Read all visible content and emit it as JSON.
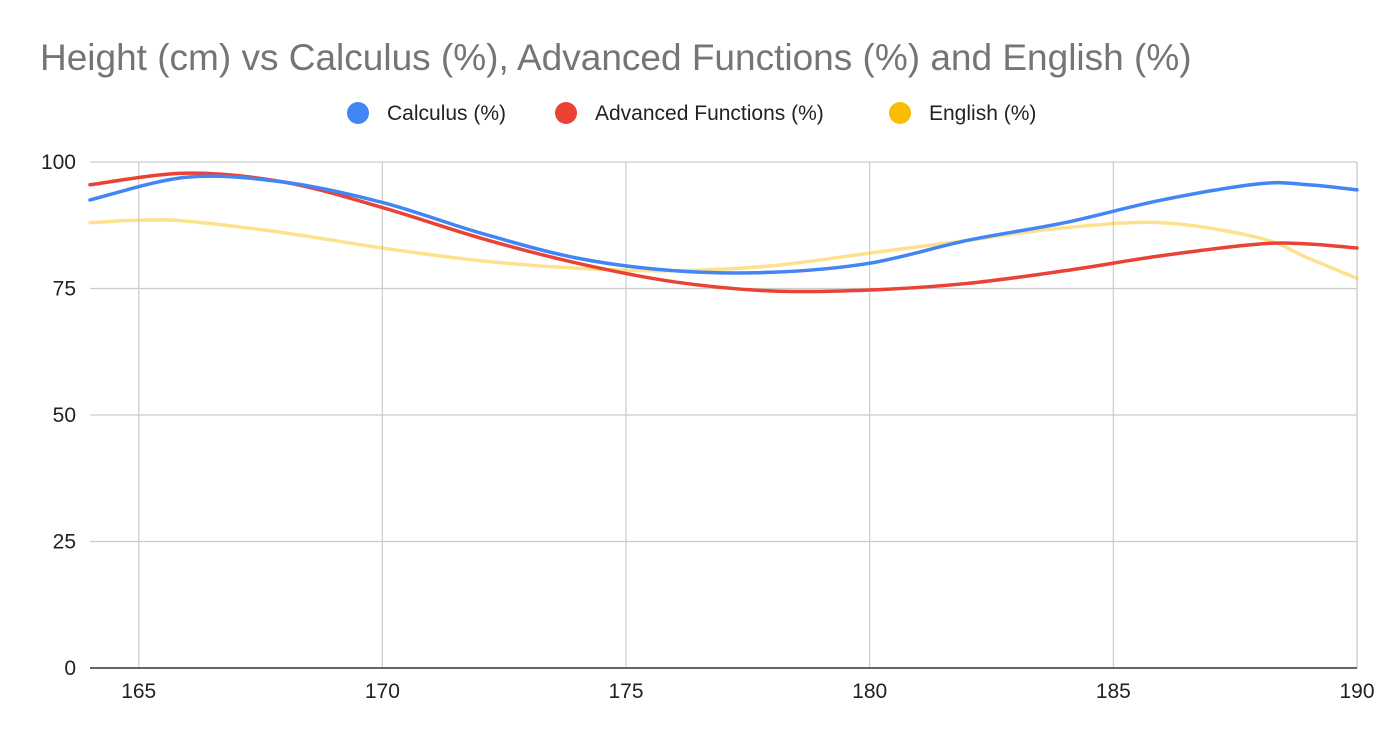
{
  "chart_data": {
    "type": "line",
    "title": "Height (cm) vs Calculus (%), Advanced Functions (%) and English (%)",
    "xlabel": "",
    "ylabel": "",
    "xlim": [
      164,
      190
    ],
    "ylim": [
      0,
      100
    ],
    "x_ticks": [
      165,
      170,
      175,
      180,
      185,
      190
    ],
    "y_ticks": [
      0,
      25,
      50,
      75,
      100
    ],
    "smooth": true,
    "grid": true,
    "legend_position": "top",
    "series": [
      {
        "name": "Calculus (%)",
        "color": "#4285F4",
        "x": [
          164,
          166,
          168,
          170,
          172,
          174,
          176,
          178,
          180,
          182,
          184,
          186,
          188,
          189,
          190
        ],
        "values": [
          92.5,
          97,
          96,
          92,
          86,
          81,
          78.5,
          78.2,
          80,
          84.5,
          88,
          92.5,
          95.7,
          95.5,
          94.5
        ]
      },
      {
        "name": "Advanced Functions (%)",
        "color": "#EA4335",
        "x": [
          164,
          166,
          168,
          170,
          172,
          174,
          176,
          178,
          180,
          182,
          184,
          186,
          188,
          189,
          190
        ],
        "values": [
          95.5,
          97.8,
          96,
          91,
          85,
          80,
          76.3,
          74.5,
          74.7,
          76,
          78.5,
          81.5,
          83.8,
          83.8,
          83
        ]
      },
      {
        "name": "English (%)",
        "color": "#FBBC04",
        "x": [
          164,
          165,
          166,
          168,
          170,
          172,
          174,
          176,
          178,
          180,
          182,
          184,
          186,
          188,
          189,
          190
        ],
        "values": [
          88,
          88.5,
          88.3,
          86,
          83,
          80.5,
          79,
          78.5,
          79.5,
          82,
          84.5,
          87,
          88,
          85,
          81,
          77
        ]
      }
    ]
  }
}
